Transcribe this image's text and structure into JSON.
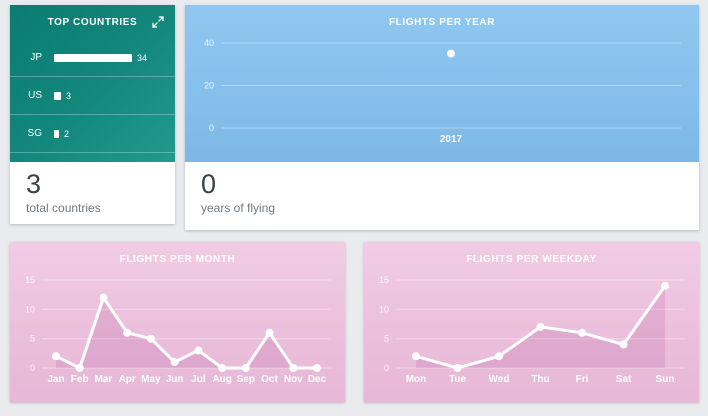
{
  "colors": {
    "background": "#e9ebee",
    "teal": "#12857a",
    "blue": "#85bfeb",
    "pink": "#ecc2dd",
    "line": "#ffffff",
    "stat_number": "#3b4046",
    "stat_label": "#72797f"
  },
  "icons": {
    "expand": "diagonal-expand-arrows"
  },
  "panels": {
    "top_countries": {
      "stat_value": "3",
      "stat_label": "total countries"
    },
    "flights_per_year": {
      "stat_value": "0",
      "stat_label": "years of flying"
    }
  },
  "chart_data": [
    {
      "type": "bar",
      "title": "TOP COUNTRIES",
      "orientation": "horizontal",
      "categories": [
        "JP",
        "US",
        "SG"
      ],
      "values": [
        34,
        3,
        2
      ]
    },
    {
      "type": "scatter",
      "title": "FLIGHTS PER YEAR",
      "x": [
        "2017"
      ],
      "values": [
        35
      ],
      "ylim": [
        0,
        40
      ],
      "yticks": [
        0,
        20,
        40
      ],
      "xlabel": "",
      "ylabel": "",
      "grid": true,
      "marker_color": "#ffffff"
    },
    {
      "type": "line",
      "title": "FLIGHTS PER MONTH",
      "categories": [
        "Jan",
        "Feb",
        "Mar",
        "Apr",
        "May",
        "Jun",
        "Jul",
        "Aug",
        "Sep",
        "Oct",
        "Nov",
        "Dec"
      ],
      "values": [
        2,
        0,
        12,
        6,
        5,
        1,
        3,
        0,
        0,
        6,
        0,
        0
      ],
      "ylim": [
        0,
        15
      ],
      "yticks": [
        0,
        5,
        10,
        15
      ],
      "grid": true,
      "line_color": "#ffffff",
      "area_fill": true
    },
    {
      "type": "line",
      "title": "FLIGHTS PER WEEKDAY",
      "categories": [
        "Mon",
        "Tue",
        "Wed",
        "Thu",
        "Fri",
        "Sat",
        "Sun"
      ],
      "values": [
        2,
        0,
        2,
        7,
        6,
        4,
        14
      ],
      "ylim": [
        0,
        15
      ],
      "yticks": [
        0,
        5,
        10,
        15
      ],
      "grid": true,
      "line_color": "#ffffff",
      "area_fill": true
    }
  ]
}
